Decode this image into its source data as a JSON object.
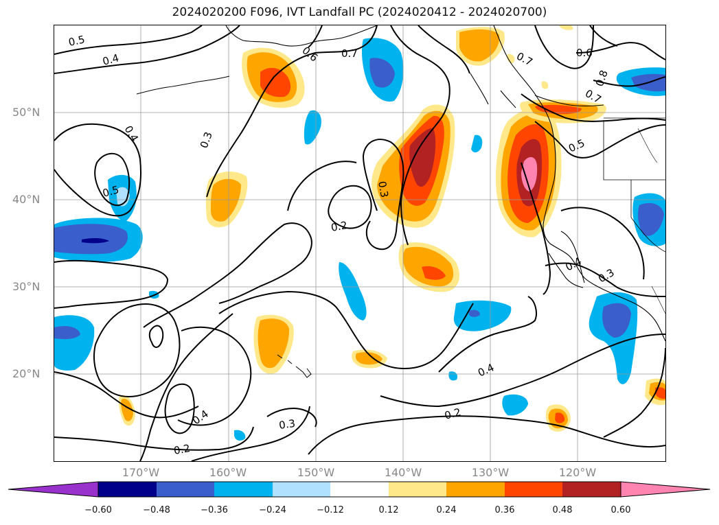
{
  "title": "2024020200 F096, IVT Landfall PC (2024020412 - 2024020700)",
  "lat_labels": [
    "50°N",
    "40°N",
    "30°N",
    "20°N"
  ],
  "lon_labels": [
    "170°W",
    "160°W",
    "150°W",
    "140°W",
    "130°W",
    "120°W"
  ],
  "contour_labels": [
    "0.5",
    "0.4",
    "0.6",
    "0.7",
    "0.7",
    "0.6",
    "0.8",
    "0.7",
    "0.3",
    "0.4",
    "0.5",
    "0.3",
    "0.2",
    "0.5",
    "0.4",
    "0.3",
    "0.4",
    "0.2",
    "0.4",
    "0.3",
    "0.2"
  ],
  "colorbar": {
    "ticks": [
      "−0.60",
      "−0.48",
      "−0.36",
      "−0.24",
      "−0.12",
      "0.12",
      "0.24",
      "0.36",
      "0.48",
      "0.60"
    ],
    "colors": [
      "#9932cc",
      "#00008b",
      "#3a5fcd",
      "#00b2ee",
      "#b0e2ff",
      "#ffffff",
      "#ffe88a",
      "#ffa500",
      "#ff4500",
      "#b22222",
      "#ff85b0"
    ]
  },
  "map": {
    "region": "North-East Pacific",
    "lon_range": [
      -180,
      -110
    ],
    "lat_range": [
      10,
      60
    ],
    "fill_colors": {
      "neg_light": "#b0e2ff",
      "neg_mid": "#00b2ee",
      "neg_strong": "#3a5fcd",
      "neg_max": "#00008b",
      "pos_light": "#ffe88a",
      "pos_mid": "#ffa500",
      "pos_strong": "#ff4500",
      "pos_max": "#b22222",
      "pos_extreme": "#ff85b0"
    }
  }
}
